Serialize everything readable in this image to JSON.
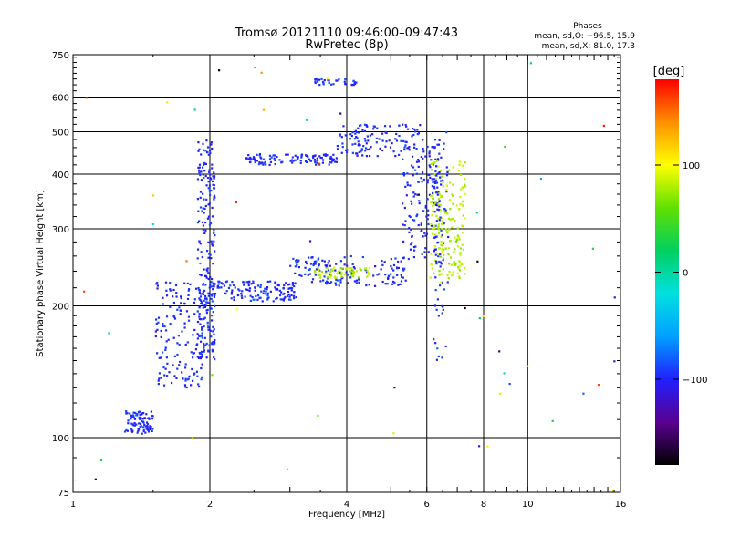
{
  "header": {
    "title_line1": "Tromsø 20121110 09:46:00–09:47:43",
    "title_line2": "RwPretec (8p)"
  },
  "stats": {
    "heading": "Phases",
    "line_o": "mean, sd,O: −96.5, 15.9",
    "line_x": "mean, sd,X:  81.0, 17.3"
  },
  "colorbar": {
    "label": "[deg]",
    "ticks": [
      "100",
      "0",
      "−100"
    ],
    "tick_values": [
      100,
      0,
      -100
    ],
    "range": [
      -180,
      180
    ],
    "colormap": [
      "#000000",
      "#5a0090",
      "#2020ff",
      "#00a0ff",
      "#00e0e0",
      "#00d060",
      "#60e000",
      "#ffff00",
      "#ff9000",
      "#ff0000"
    ]
  },
  "chart_data": {
    "type": "scatter",
    "xlabel": "Frequency [MHz]",
    "ylabel": "Stationary phase Virtual Height [km]",
    "x_scale": "log",
    "y_scale": "log",
    "xlim": [
      1,
      16
    ],
    "ylim": [
      75,
      750
    ],
    "xticks": [
      1,
      2,
      4,
      6,
      8,
      10,
      16
    ],
    "yticks": [
      75,
      100,
      200,
      300,
      400,
      500,
      600,
      750
    ],
    "x_gridlines": [
      2,
      4,
      6,
      8,
      10
    ],
    "y_gridlines": [
      100,
      200,
      300,
      400,
      500,
      600
    ],
    "series": [
      {
        "mode": "O",
        "phase_mean": -96.5,
        "phase_sd": 15.9
      },
      {
        "mode": "X",
        "phase_mean": 81.0,
        "phase_sd": 17.3
      }
    ]
  }
}
